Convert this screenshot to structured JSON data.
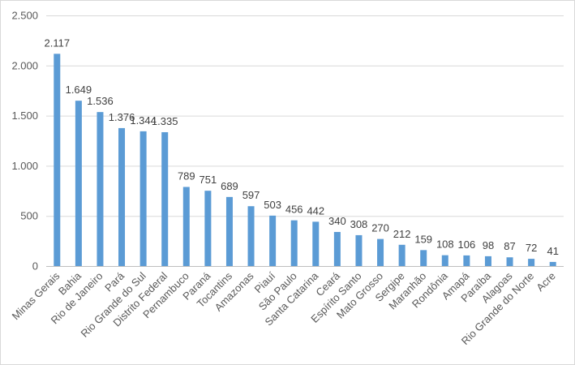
{
  "chart_data": {
    "type": "bar",
    "title": "",
    "xlabel": "",
    "ylabel": "",
    "ylim": [
      0,
      2500
    ],
    "yticks": [
      0,
      500,
      1000,
      1500,
      2000,
      2500
    ],
    "ytick_labels": [
      "0",
      "500",
      "1.000",
      "1.500",
      "2.000",
      "2.500"
    ],
    "grid": true,
    "legend": "none",
    "bar_color": "#5b9bd5",
    "categories": [
      "Minas Gerais",
      "Bahia",
      "Rio de Janeiro",
      "Pará",
      "Rio Grande do Sul",
      "Distrito Federal",
      "Pernambuco",
      "Paraná",
      "Tocantins",
      "Amazonas",
      "Piauí",
      "São Paulo",
      "Santa Catarina",
      "Ceará",
      "Espírito Santo",
      "Mato Grosso",
      "Sergipe",
      "Maranhão",
      "Rondônia",
      "Amapá",
      "Paraíba",
      "Alagoas",
      "Rio Grande do Norte",
      "Acre"
    ],
    "values": [
      2117,
      1649,
      1536,
      1376,
      1344,
      1335,
      789,
      751,
      689,
      597,
      503,
      456,
      442,
      340,
      308,
      270,
      212,
      159,
      108,
      106,
      98,
      87,
      72,
      41
    ],
    "data_labels": [
      "2.117",
      "1.649",
      "1.536",
      "1.376",
      "1.344",
      "1.335",
      "789",
      "751",
      "689",
      "597",
      "503",
      "456",
      "442",
      "340",
      "308",
      "270",
      "212",
      "159",
      "108",
      "106",
      "98",
      "87",
      "72",
      "41"
    ]
  }
}
